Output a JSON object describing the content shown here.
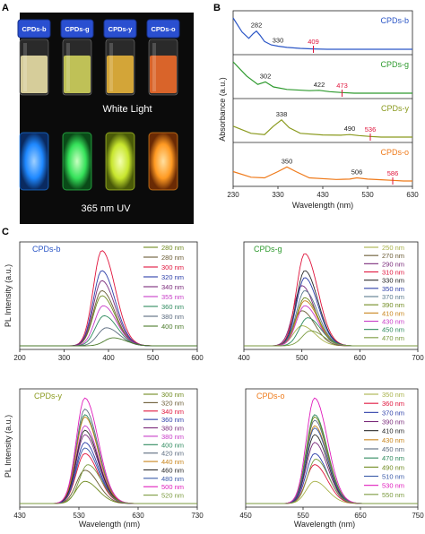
{
  "panels": {
    "a": "A",
    "b": "B",
    "c": "C"
  },
  "panel_a": {
    "vial_labels": [
      "CPDs-b",
      "CPDs-g",
      "CPDs-y",
      "CPDs-o"
    ],
    "white_light_caption": "White Light",
    "uv_caption": "365 nm UV",
    "colors": {
      "cap": "#2a4fd0",
      "liquid_white": [
        "#e9dfa6",
        "#cfd15c",
        "#e6b23a",
        "#ec6a2a"
      ],
      "glow_uv": [
        "#1e88ff",
        "#35e25a",
        "#c8e62e",
        "#ff9a22"
      ]
    }
  },
  "chart_data": [
    {
      "type": "line",
      "title": "",
      "xlabel": "Wavelength (nm)",
      "ylabel": "Absorbance (a.u.)",
      "xlim": [
        230,
        630
      ],
      "xticks": [
        230,
        330,
        430,
        530,
        630
      ],
      "series": [
        {
          "name": "CPDs-b",
          "color": "#2b56c6",
          "peaks": [
            282,
            330
          ],
          "marker": 409,
          "x": [
            230,
            250,
            265,
            275,
            282,
            290,
            300,
            315,
            330,
            350,
            380,
            409,
            440,
            630
          ],
          "y": [
            1.0,
            0.55,
            0.35,
            0.5,
            0.58,
            0.45,
            0.25,
            0.14,
            0.1,
            0.06,
            0.03,
            0.01,
            0.0,
            0.0
          ]
        },
        {
          "name": "CPDs-g",
          "color": "#2e9a2e",
          "peaks": [
            302,
            422
          ],
          "marker": 473,
          "x": [
            230,
            260,
            285,
            302,
            320,
            350,
            400,
            422,
            445,
            473,
            500,
            630
          ],
          "y": [
            1.0,
            0.55,
            0.28,
            0.36,
            0.2,
            0.12,
            0.08,
            0.09,
            0.05,
            0.02,
            0.0,
            0.0
          ]
        },
        {
          "name": "CPDs-y",
          "color": "#8a9a1e",
          "peaks": [
            338,
            490
          ],
          "marker": 536,
          "x": [
            230,
            270,
            300,
            320,
            338,
            355,
            380,
            430,
            470,
            490,
            510,
            536,
            560,
            630
          ],
          "y": [
            0.35,
            0.12,
            0.08,
            0.35,
            0.55,
            0.3,
            0.12,
            0.07,
            0.06,
            0.08,
            0.05,
            0.02,
            0.0,
            0.0
          ]
        },
        {
          "name": "CPDs-o",
          "color": "#ef7a1a",
          "peaks": [
            350,
            506
          ],
          "marker": 586,
          "x": [
            230,
            270,
            300,
            330,
            350,
            370,
            400,
            460,
            490,
            506,
            530,
            560,
            586,
            610,
            630
          ],
          "y": [
            0.3,
            0.12,
            0.1,
            0.3,
            0.45,
            0.3,
            0.1,
            0.05,
            0.06,
            0.1,
            0.06,
            0.04,
            0.02,
            0.0,
            0.0
          ]
        }
      ]
    },
    {
      "type": "line",
      "title": "CPDs-b",
      "title_color": "#2b56c6",
      "xlabel": "",
      "ylabel": "PL Intensity (a.u.)",
      "xlim": [
        200,
        600
      ],
      "xticks": [
        200,
        300,
        400,
        500,
        600
      ],
      "ylim": [
        0,
        1
      ],
      "excitation": [
        {
          "label": "280 nm",
          "color": "#6f8a1f",
          "peak": 385,
          "height": 0.5
        },
        {
          "label": "280 nm",
          "color": "#6a5b34",
          "peak": 385,
          "height": 0.55
        },
        {
          "label": "300 nm",
          "color": "#e0143c",
          "peak": 385,
          "height": 0.95
        },
        {
          "label": "320 nm",
          "color": "#2c3ea8",
          "peak": 385,
          "height": 0.75
        },
        {
          "label": "340 nm",
          "color": "#7a2a7a",
          "peak": 385,
          "height": 0.65
        },
        {
          "label": "355 nm",
          "color": "#c83cc8",
          "peak": 388,
          "height": 0.4
        },
        {
          "label": "360 nm",
          "color": "#2e8a5e",
          "peak": 390,
          "height": 0.3
        },
        {
          "label": "380 nm",
          "color": "#5a6a7e",
          "peak": 395,
          "height": 0.18
        },
        {
          "label": "400 nm",
          "color": "#4a7a2a",
          "peak": 410,
          "height": 0.08
        }
      ]
    },
    {
      "type": "line",
      "title": "CPDs-g",
      "title_color": "#2e9a2e",
      "xlabel": "",
      "ylabel": "",
      "xlim": [
        400,
        700
      ],
      "xticks": [
        400,
        500,
        600,
        700
      ],
      "ylim": [
        0,
        1
      ],
      "excitation": [
        {
          "label": "250 nm",
          "color": "#a8b24a",
          "peak": 500,
          "height": 0.2
        },
        {
          "label": "270 nm",
          "color": "#6a5b34",
          "peak": 500,
          "height": 0.35
        },
        {
          "label": "290 nm",
          "color": "#7a2a7a",
          "peak": 500,
          "height": 0.6
        },
        {
          "label": "310 nm",
          "color": "#e0143c",
          "peak": 505,
          "height": 0.92
        },
        {
          "label": "330 nm",
          "color": "#2a2a2a",
          "peak": 505,
          "height": 0.75
        },
        {
          "label": "350 nm",
          "color": "#2c3ea8",
          "peak": 505,
          "height": 0.68
        },
        {
          "label": "370 nm",
          "color": "#5a7a8e",
          "peak": 505,
          "height": 0.55
        },
        {
          "label": "390 nm",
          "color": "#6f8a1f",
          "peak": 505,
          "height": 0.48
        },
        {
          "label": "410 nm",
          "color": "#c8841a",
          "peak": 505,
          "height": 0.45
        },
        {
          "label": "430 nm",
          "color": "#c83cc8",
          "peak": 505,
          "height": 0.4
        },
        {
          "label": "450 nm",
          "color": "#2e8a5e",
          "peak": 510,
          "height": 0.28
        },
        {
          "label": "470 nm",
          "color": "#7a9a3e",
          "peak": 515,
          "height": 0.15
        }
      ]
    },
    {
      "type": "line",
      "title": "CPDs-y",
      "title_color": "#8a9a1e",
      "xlabel": "Wavelength (nm)",
      "ylabel": "PL Intensity (a.u.)",
      "xlim": [
        430,
        730
      ],
      "xticks": [
        430,
        530,
        630,
        730
      ],
      "ylim": [
        0,
        1
      ],
      "excitation": [
        {
          "label": "300 nm",
          "color": "#6f8a1f",
          "peak": 540,
          "height": 0.2
        },
        {
          "label": "320 nm",
          "color": "#6a5b34",
          "peak": 540,
          "height": 0.3
        },
        {
          "label": "340 nm",
          "color": "#e0143c",
          "peak": 540,
          "height": 0.45
        },
        {
          "label": "360 nm",
          "color": "#2c3ea8",
          "peak": 540,
          "height": 0.55
        },
        {
          "label": "380 nm",
          "color": "#7a2a7a",
          "peak": 540,
          "height": 0.62
        },
        {
          "label": "380 nm",
          "color": "#c83cc8",
          "peak": 540,
          "height": 0.7
        },
        {
          "label": "400 nm",
          "color": "#2e8a5e",
          "peak": 540,
          "height": 0.8
        },
        {
          "label": "420 nm",
          "color": "#5a6a7e",
          "peak": 540,
          "height": 0.85
        },
        {
          "label": "440 nm",
          "color": "#c8841a",
          "peak": 540,
          "height": 0.78
        },
        {
          "label": "460 nm",
          "color": "#2a2a2a",
          "peak": 540,
          "height": 0.66
        },
        {
          "label": "480 nm",
          "color": "#3a5aa8",
          "peak": 540,
          "height": 0.5
        },
        {
          "label": "500 nm",
          "color": "#e01cbc",
          "peak": 540,
          "height": 0.95
        },
        {
          "label": "520 nm",
          "color": "#7a9a3e",
          "peak": 545,
          "height": 0.35
        }
      ]
    },
    {
      "type": "line",
      "title": "CPDs-o",
      "title_color": "#ef7a1a",
      "xlabel": "Wavelength (nm)",
      "ylabel": "",
      "xlim": [
        450,
        750
      ],
      "xticks": [
        450,
        550,
        650,
        750
      ],
      "ylim": [
        0,
        1
      ],
      "excitation": [
        {
          "label": "350 nm",
          "color": "#a8b24a",
          "peak": 570,
          "height": 0.2
        },
        {
          "label": "360 nm",
          "color": "#e0143c",
          "peak": 570,
          "height": 0.35
        },
        {
          "label": "370 nm",
          "color": "#2c3ea8",
          "peak": 570,
          "height": 0.45
        },
        {
          "label": "390 nm",
          "color": "#7a2a7a",
          "peak": 570,
          "height": 0.55
        },
        {
          "label": "410 nm",
          "color": "#2a2a2a",
          "peak": 570,
          "height": 0.62
        },
        {
          "label": "430 nm",
          "color": "#c8841a",
          "peak": 570,
          "height": 0.7
        },
        {
          "label": "450 nm",
          "color": "#5a6a7e",
          "peak": 570,
          "height": 0.75
        },
        {
          "label": "470 nm",
          "color": "#2e8a5e",
          "peak": 570,
          "height": 0.8
        },
        {
          "label": "490 nm",
          "color": "#6f8a1f",
          "peak": 570,
          "height": 0.78
        },
        {
          "label": "510 nm",
          "color": "#3a5aa8",
          "peak": 570,
          "height": 0.68
        },
        {
          "label": "530 nm",
          "color": "#e01cbc",
          "peak": 570,
          "height": 0.95
        },
        {
          "label": "550 nm",
          "color": "#7a9a3e",
          "peak": 572,
          "height": 0.4
        }
      ]
    }
  ]
}
